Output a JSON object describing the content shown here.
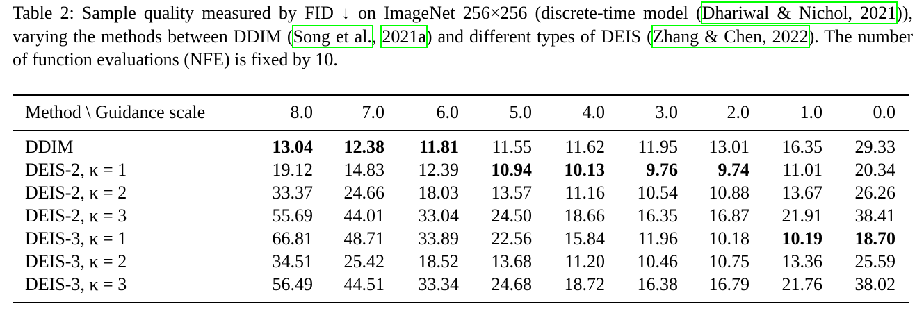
{
  "caption": {
    "segments": [
      {
        "text": "Table 2: Sample quality measured by FID ↓ on ImageNet 256×256 (discrete-time model ("
      },
      {
        "text": "Dhariwal & Nichol, 2021",
        "link": true
      },
      {
        "text": ")), varying the methods between DDIM ("
      },
      {
        "text": "Song et al.",
        "link": true
      },
      {
        "text": ", "
      },
      {
        "text": "2021a",
        "link": true
      },
      {
        "text": ") and different types of DEIS ("
      },
      {
        "text": "Zhang & Chen, 2022",
        "link": true
      },
      {
        "text": "). The number of function evaluations (NFE) is fixed by 10."
      }
    ]
  },
  "table": {
    "header": [
      "Method \\ Guidance scale",
      "8.0",
      "7.0",
      "6.0",
      "5.0",
      "4.0",
      "3.0",
      "2.0",
      "1.0",
      "0.0"
    ],
    "rows": [
      {
        "cells": [
          "DDIM",
          "13.04",
          "12.38",
          "11.81",
          "11.55",
          "11.62",
          "11.95",
          "13.01",
          "16.35",
          "29.33"
        ],
        "bold": [
          1,
          2,
          3
        ]
      },
      {
        "cells": [
          "DEIS-2, κ = 1",
          "19.12",
          "14.83",
          "12.39",
          "10.94",
          "10.13",
          "9.76",
          "9.74",
          "11.01",
          "20.34"
        ],
        "bold": [
          4,
          5,
          6,
          7
        ]
      },
      {
        "cells": [
          "DEIS-2, κ = 2",
          "33.37",
          "24.66",
          "18.03",
          "13.57",
          "11.16",
          "10.54",
          "10.88",
          "13.67",
          "26.26"
        ],
        "bold": []
      },
      {
        "cells": [
          "DEIS-2, κ = 3",
          "55.69",
          "44.01",
          "33.04",
          "24.50",
          "18.66",
          "16.35",
          "16.87",
          "21.91",
          "38.41"
        ],
        "bold": []
      },
      {
        "cells": [
          "DEIS-3, κ = 1",
          "66.81",
          "48.71",
          "33.89",
          "22.56",
          "15.84",
          "11.96",
          "10.18",
          "10.19",
          "18.70"
        ],
        "bold": [
          8,
          9
        ]
      },
      {
        "cells": [
          "DEIS-3, κ = 2",
          "34.51",
          "25.42",
          "18.52",
          "13.68",
          "11.20",
          "10.46",
          "10.75",
          "13.36",
          "25.59"
        ],
        "bold": []
      },
      {
        "cells": [
          "DEIS-3, κ = 3",
          "56.49",
          "44.51",
          "33.34",
          "24.68",
          "18.72",
          "16.38",
          "16.79",
          "21.76",
          "38.02"
        ],
        "bold": []
      }
    ]
  }
}
